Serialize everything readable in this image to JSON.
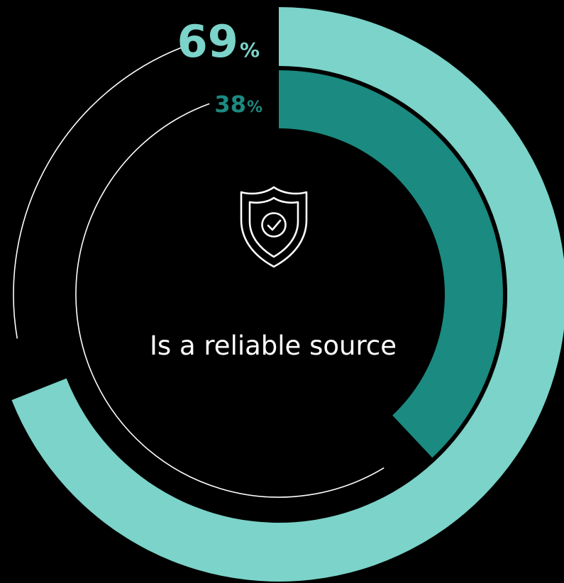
{
  "chart_data": {
    "type": "radial_bar",
    "caption": "Is a reliable source",
    "icon": "shield-check-icon",
    "series": [
      {
        "value": 69,
        "label": "69",
        "unit": "%",
        "color": "#7BD3C9",
        "ring": "outer"
      },
      {
        "value": 38,
        "label": "38",
        "unit": "%",
        "color": "#1B8A80",
        "ring": "inner"
      }
    ],
    "max": 100,
    "track_color": "#ffffff",
    "background": "#000000"
  }
}
